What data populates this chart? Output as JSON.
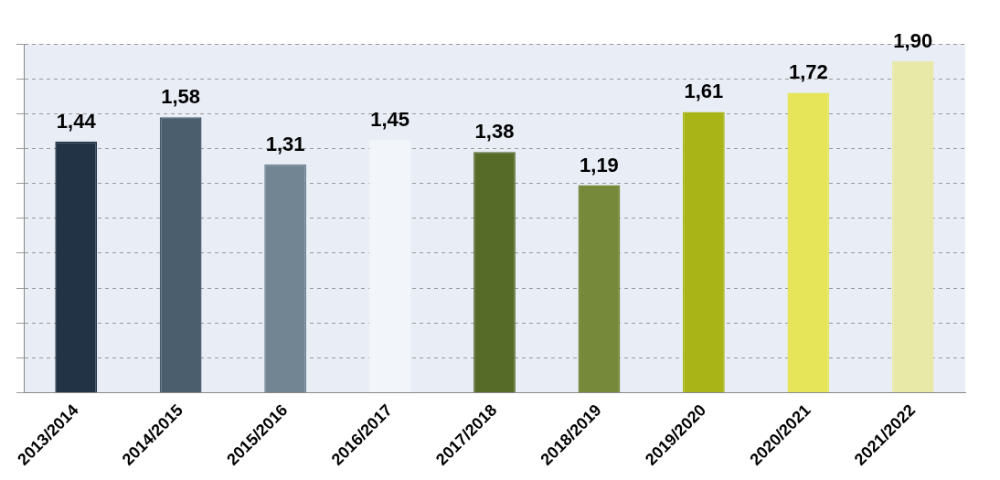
{
  "chart_data": {
    "type": "bar",
    "categories": [
      "2013/2014",
      "2014/2015",
      "2015/2016",
      "2016/2017",
      "2017/2018",
      "2018/2019",
      "2019/2020",
      "2020/2021",
      "2021/2022"
    ],
    "values": [
      1.44,
      1.58,
      1.31,
      1.45,
      1.38,
      1.19,
      1.61,
      1.72,
      1.9
    ],
    "colors": [
      "#213344",
      "#4b5e6e",
      "#718592",
      "#f2f6fb",
      "#566b28",
      "#76893a",
      "#a9b516",
      "#e6e55a",
      "#e8e9a6"
    ],
    "value_labels": [
      "1,44",
      "1,58",
      "1,31",
      "1,45",
      "1,38",
      "1,19",
      "1,61",
      "1,72",
      "1,90"
    ],
    "tick_labels": "x",
    "grid": "y",
    "legend": false
  }
}
